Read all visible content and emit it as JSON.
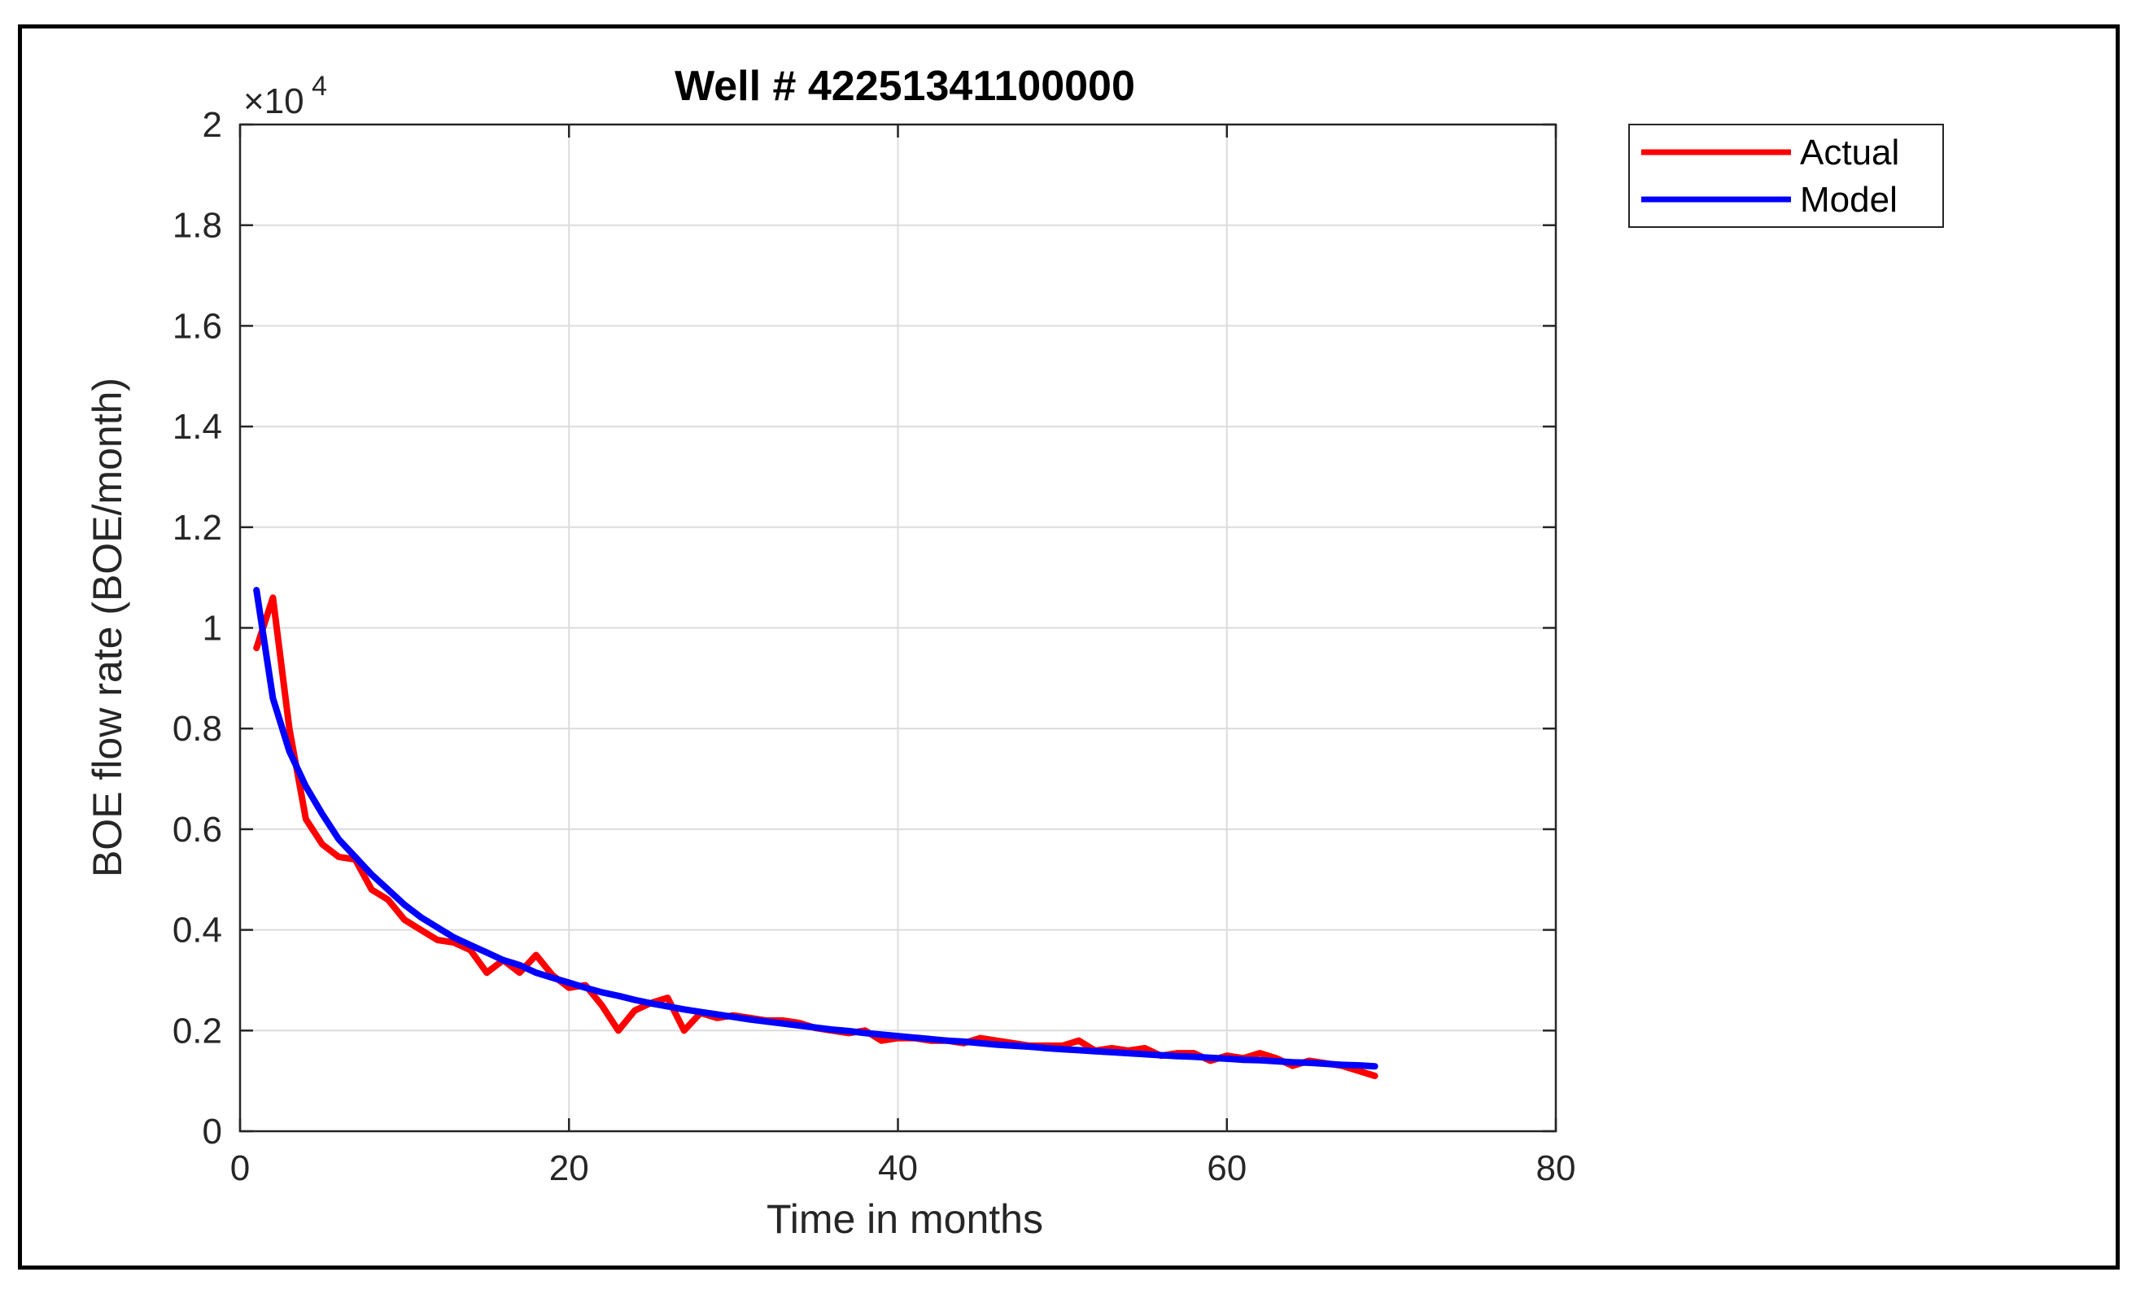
{
  "chart_data": {
    "type": "line",
    "title": "Well # 42251341100000",
    "xlabel": "Time in months",
    "ylabel": "BOE flow rate (BOE/month)",
    "xlim": [
      0,
      80
    ],
    "ylim": [
      0,
      20000
    ],
    "x_ticks": [
      0,
      20,
      40,
      60,
      80
    ],
    "x_tick_labels": [
      "0",
      "20",
      "40",
      "60",
      "80"
    ],
    "y_ticks": [
      0,
      2000,
      4000,
      6000,
      8000,
      10000,
      12000,
      14000,
      16000,
      18000,
      20000
    ],
    "y_tick_labels": [
      "0",
      "0.2",
      "0.4",
      "0.6",
      "0.8",
      "1",
      "1.2",
      "1.4",
      "1.6",
      "1.8",
      "2"
    ],
    "y_exponent_base": "×10",
    "y_exponent_power": "4",
    "grid": true,
    "legend_position": "outside-top-right",
    "series": [
      {
        "name": "Actual",
        "color": "#ff0000",
        "x": [
          1,
          2,
          3,
          4,
          5,
          6,
          7,
          8,
          9,
          10,
          11,
          12,
          13,
          14,
          15,
          16,
          17,
          18,
          19,
          20,
          21,
          22,
          23,
          24,
          25,
          26,
          27,
          28,
          29,
          30,
          31,
          32,
          33,
          34,
          35,
          36,
          37,
          38,
          39,
          40,
          41,
          42,
          43,
          44,
          45,
          46,
          47,
          48,
          49,
          50,
          51,
          52,
          53,
          54,
          55,
          56,
          57,
          58,
          59,
          60,
          61,
          62,
          63,
          64,
          65,
          66,
          67,
          68,
          69
        ],
        "values": [
          9600,
          10600,
          8000,
          6200,
          5700,
          5450,
          5400,
          4800,
          4600,
          4200,
          4000,
          3800,
          3750,
          3600,
          3150,
          3400,
          3150,
          3500,
          3100,
          2850,
          2900,
          2500,
          2000,
          2400,
          2550,
          2650,
          2000,
          2350,
          2250,
          2300,
          2250,
          2200,
          2200,
          2150,
          2050,
          2000,
          1950,
          2000,
          1800,
          1850,
          1850,
          1800,
          1800,
          1750,
          1850,
          1800,
          1750,
          1700,
          1700,
          1700,
          1800,
          1600,
          1650,
          1600,
          1650,
          1500,
          1550,
          1550,
          1400,
          1500,
          1450,
          1550,
          1450,
          1300,
          1400,
          1350,
          1300,
          1200,
          1100
        ]
      },
      {
        "name": "Model",
        "color": "#0000ff",
        "x": [
          1,
          2,
          3,
          4,
          5,
          6,
          7,
          8,
          9,
          10,
          11,
          12,
          13,
          14,
          15,
          16,
          17,
          18,
          19,
          20,
          21,
          22,
          23,
          24,
          25,
          26,
          27,
          28,
          29,
          30,
          31,
          32,
          33,
          34,
          35,
          36,
          37,
          38,
          39,
          40,
          41,
          42,
          43,
          44,
          45,
          46,
          47,
          48,
          49,
          50,
          51,
          52,
          53,
          54,
          55,
          56,
          57,
          58,
          59,
          60,
          61,
          62,
          63,
          64,
          65,
          66,
          67,
          68,
          69
        ],
        "values": [
          10750,
          8600,
          7550,
          6850,
          6300,
          5800,
          5450,
          5100,
          4800,
          4500,
          4250,
          4050,
          3850,
          3700,
          3550,
          3400,
          3300,
          3150,
          3050,
          2950,
          2850,
          2760,
          2690,
          2610,
          2540,
          2480,
          2420,
          2370,
          2320,
          2270,
          2220,
          2180,
          2140,
          2100,
          2060,
          2020,
          1990,
          1950,
          1920,
          1890,
          1860,
          1830,
          1800,
          1780,
          1750,
          1720,
          1700,
          1680,
          1650,
          1630,
          1610,
          1590,
          1570,
          1550,
          1530,
          1510,
          1490,
          1480,
          1460,
          1440,
          1420,
          1410,
          1390,
          1370,
          1360,
          1340,
          1320,
          1310,
          1290
        ]
      }
    ]
  }
}
